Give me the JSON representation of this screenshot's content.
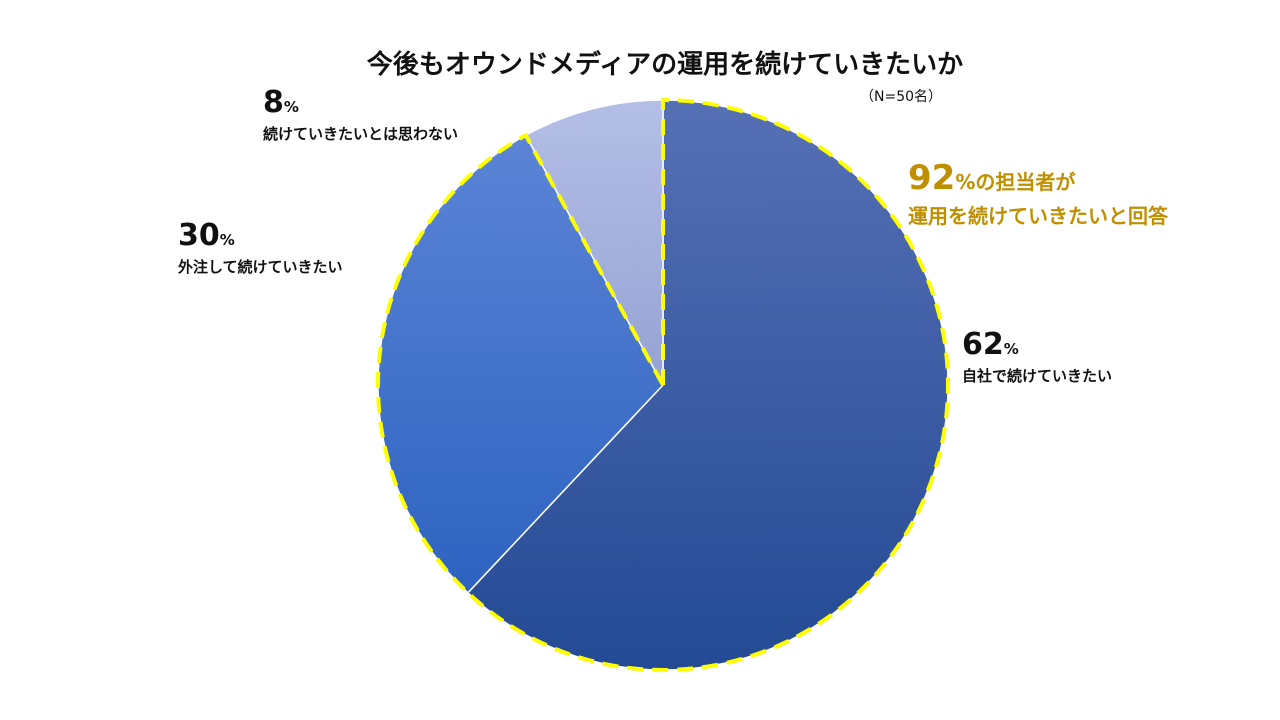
{
  "chart_data": {
    "type": "pie",
    "title": "今後もオウンドメディアの運用を続けていきたいか",
    "note": "（N=50名）",
    "unit": "%",
    "slices": [
      {
        "label": "自社で続けていきたい",
        "value": 62,
        "color": "#2b4c9b"
      },
      {
        "label": "外注して続けていきたい",
        "value": 30,
        "color": "#3f6fca"
      },
      {
        "label": "続けていきたいとは思わない",
        "value": 8,
        "color": "#a9b6df"
      }
    ],
    "callout": {
      "value": 92,
      "line1": "の担当者が",
      "line2": "運用を続けていきたいと回答",
      "color": "#bf8f00"
    },
    "highlight_color": "#ffff00"
  }
}
